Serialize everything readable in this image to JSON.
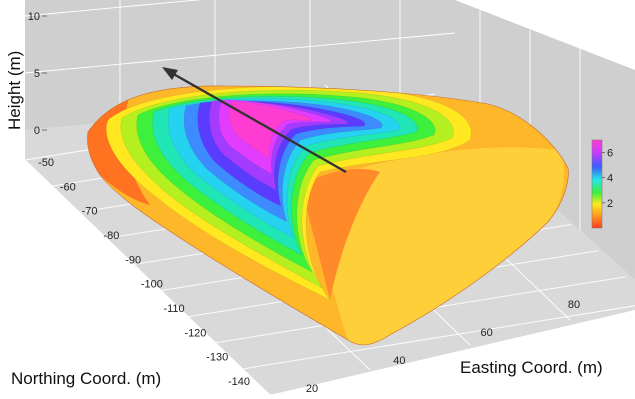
{
  "chart_data": {
    "type": "surface3d",
    "title": "",
    "xlabel": "Easting Coord. (m)",
    "ylabel": "Northing Coord. (m)",
    "zlabel": "Height (m)",
    "x_ticks": [
      20,
      40,
      60,
      80
    ],
    "y_ticks": [
      -50,
      -60,
      -70,
      -80,
      -90,
      -100,
      -110,
      -120,
      -130,
      -140
    ],
    "z_ticks": [
      0,
      5,
      10
    ],
    "xlim": [
      10,
      100
    ],
    "ylim": [
      -145,
      -40
    ],
    "zlim": [
      0,
      10
    ],
    "colorbar": {
      "ticks": [
        2,
        4,
        6
      ],
      "range": [
        0,
        7
      ],
      "colormap": "hsv"
    },
    "grid": true,
    "annotation": "arrow over the crest of the surface pointing to its upper end",
    "surface": {
      "description": "horseshoe-shaped raised mound, peak height about 7 m near the upper-central area, falling off to about 0 m at the outer edges",
      "peak_height": 7,
      "edge_height": 0
    }
  },
  "colors": {
    "panel_background": "#cfcfcf",
    "page_background": "#ffffff",
    "arrow": "#333333"
  }
}
